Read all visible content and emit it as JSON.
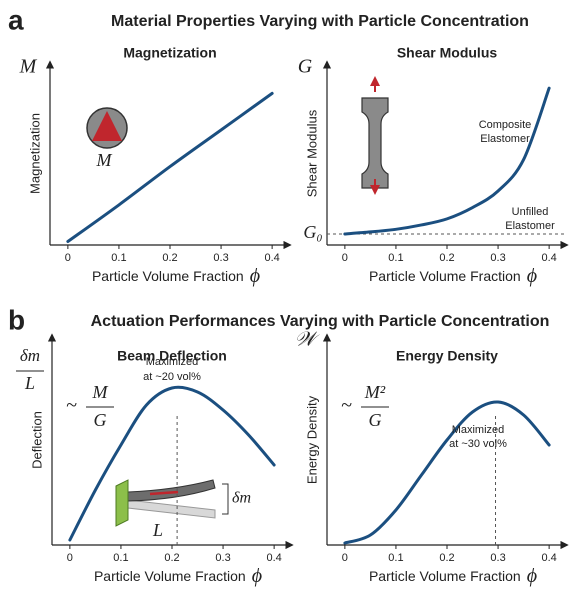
{
  "panels": [
    {
      "label": "a",
      "title": "Material Properties Varying with Particle Concentration"
    },
    {
      "label": "b",
      "title": "Actuation Performances Varying with Particle Concentration"
    }
  ],
  "chart_data": [
    {
      "type": "line",
      "title": "Magnetization",
      "xlabel": "Particle Volume Fraction",
      "xsymbol": "ϕ",
      "ylabel": "Magnetization",
      "ysymbol": "M",
      "inset_label": "M",
      "x": [
        0,
        0.1,
        0.2,
        0.3,
        0.4
      ],
      "values": [
        0.02,
        0.23,
        0.45,
        0.66,
        0.87
      ],
      "color": "#1b4f80",
      "xlim": [
        -0.035,
        0.435
      ],
      "ylim": [
        0,
        1.05
      ],
      "xticks": [
        0,
        0.1,
        0.2,
        0.3,
        0.4
      ]
    },
    {
      "type": "line",
      "title": "Shear Modulus",
      "xlabel": "Particle Volume Fraction",
      "xsymbol": "ϕ",
      "ylabel": "Shear Modulus",
      "ysymbol": "G",
      "hline": 0.063,
      "hline_label": "G₀",
      "annotations": [
        "Composite",
        "Elastomer",
        "Unfilled",
        "Elastomer"
      ],
      "x": [
        0,
        0.05,
        0.1,
        0.15,
        0.2,
        0.25,
        0.3,
        0.35,
        0.4
      ],
      "values": [
        0.063,
        0.075,
        0.09,
        0.115,
        0.15,
        0.215,
        0.31,
        0.49,
        0.9
      ],
      "color": "#1b4f80",
      "xlim": [
        -0.035,
        0.435
      ],
      "ylim": [
        0,
        1.05
      ],
      "xticks": [
        0,
        0.1,
        0.2,
        0.3,
        0.4
      ]
    },
    {
      "type": "line",
      "title": "Beam Deflection",
      "xlabel": "Particle Volume Fraction",
      "xsymbol": "ϕ",
      "ylabel": "Deflection",
      "ysymbol_numerator": "δm",
      "ysymbol_denominator": "L",
      "formula": {
        "prefix": "~",
        "numerator": "M",
        "denominator": "G"
      },
      "vline": 0.21,
      "annotations": [
        "Maximized",
        "at ~20 vol%"
      ],
      "inset_labels": [
        "δm",
        "L"
      ],
      "x": [
        0,
        0.05,
        0.1,
        0.15,
        0.2,
        0.25,
        0.3,
        0.35,
        0.4
      ],
      "values": [
        0.025,
        0.275,
        0.5,
        0.7,
        0.785,
        0.765,
        0.675,
        0.55,
        0.4
      ],
      "color": "#1b4f80",
      "xlim": [
        -0.035,
        0.435
      ],
      "ylim": [
        0,
        1.05
      ],
      "xticks": [
        0,
        0.1,
        0.2,
        0.3,
        0.4
      ]
    },
    {
      "type": "line",
      "title": "Energy Density",
      "xlabel": "Particle Volume Fraction",
      "xsymbol": "ϕ",
      "ylabel": "Energy Density",
      "ysymbol": "𝒲",
      "formula": {
        "prefix": "~",
        "numerator": "M²",
        "denominator": "G"
      },
      "vline": 0.295,
      "annotations": [
        "Maximized",
        "at ~30 vol%"
      ],
      "x": [
        0,
        0.05,
        0.1,
        0.15,
        0.2,
        0.25,
        0.3,
        0.35,
        0.4
      ],
      "values": [
        0.01,
        0.05,
        0.175,
        0.35,
        0.525,
        0.665,
        0.715,
        0.65,
        0.5
      ],
      "color": "#1b4f80",
      "xlim": [
        -0.035,
        0.435
      ],
      "ylim": [
        0,
        1.05
      ],
      "xticks": [
        0,
        0.1,
        0.2,
        0.3,
        0.4
      ]
    }
  ]
}
